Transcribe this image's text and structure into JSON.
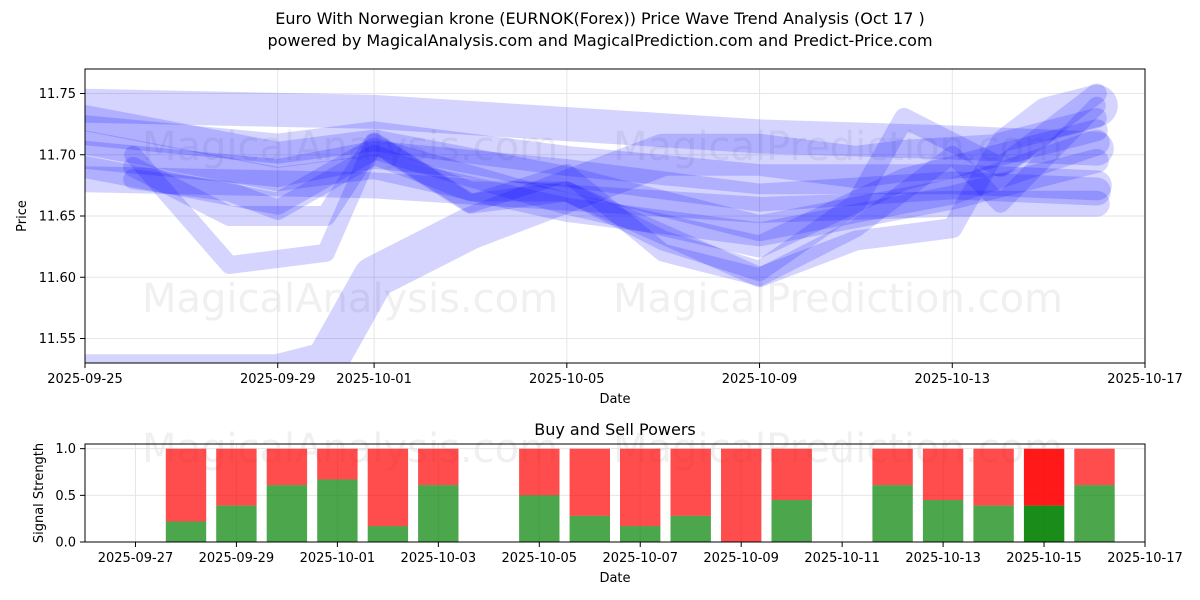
{
  "title": {
    "line1": "Euro With Norwegian krone (EURNOK(Forex)) Price Wave Trend Analysis (Oct 17 )",
    "line2": "powered by MagicalAnalysis.com and MagicalPrediction.com and Predict-Price.com"
  },
  "watermarks": [
    "MagicalAnalysis.com",
    "MagicalPrediction.com"
  ],
  "colors": {
    "wave": "#0000ff",
    "buy": "#008000",
    "sell": "#ff0000",
    "grid": "#e6e6e6"
  },
  "chart_data": [
    {
      "type": "line",
      "ylabel": "Price",
      "xlabel": "Date",
      "xlim": [
        "2025-09-25",
        "2025-10-17"
      ],
      "ylim": [
        11.53,
        11.77
      ],
      "x_ticks": [
        "2025-09-25",
        "2025-09-29",
        "2025-10-01",
        "2025-10-05",
        "2025-10-09",
        "2025-10-13",
        "2025-10-17"
      ],
      "y_ticks": [
        11.55,
        11.6,
        11.65,
        11.7,
        11.75
      ],
      "grid": true,
      "series": [
        {
          "x": [
            "2025-09-25",
            "2025-10-01",
            "2025-10-05",
            "2025-10-09",
            "2025-10-13",
            "2025-10-16"
          ],
          "y": [
            11.74,
            11.735,
            11.725,
            11.715,
            11.71,
            11.705
          ]
        },
        {
          "x": [
            "2025-09-25",
            "2025-09-29",
            "2025-10-01",
            "2025-10-05",
            "2025-10-09",
            "2025-10-13",
            "2025-10-16"
          ],
          "y": [
            11.72,
            11.705,
            11.715,
            11.695,
            11.68,
            11.68,
            11.675
          ]
        },
        {
          "x": [
            "2025-09-25",
            "2025-09-29",
            "2025-10-01",
            "2025-10-05",
            "2025-10-09",
            "2025-10-13",
            "2025-10-16"
          ],
          "y": [
            11.7,
            11.685,
            11.7,
            11.685,
            11.665,
            11.675,
            11.67
          ]
        },
        {
          "x": [
            "2025-09-25",
            "2025-10-01",
            "2025-10-05",
            "2025-10-09",
            "2025-10-13",
            "2025-10-16"
          ],
          "y": [
            11.68,
            11.675,
            11.665,
            11.655,
            11.66,
            11.66
          ]
        },
        {
          "x": [
            "2025-09-25",
            "2025-09-29",
            "2025-10-01",
            "2025-10-05",
            "2025-10-09",
            "2025-10-12",
            "2025-10-16"
          ],
          "y": [
            11.69,
            11.66,
            11.705,
            11.66,
            11.625,
            11.68,
            11.72
          ]
        },
        {
          "x": [
            "2025-09-25",
            "2025-09-29",
            "2025-10-01",
            "2025-10-05",
            "2025-10-09",
            "2025-10-13",
            "2025-10-16"
          ],
          "y": [
            11.71,
            11.68,
            11.69,
            11.655,
            11.635,
            11.665,
            11.695
          ]
        },
        {
          "x": [
            "2025-09-25",
            "2025-09-29",
            "2025-10-01",
            "2025-10-05",
            "2025-10-09",
            "2025-10-13",
            "2025-10-16"
          ],
          "y": [
            11.73,
            11.7,
            11.71,
            11.68,
            11.64,
            11.67,
            11.71
          ]
        },
        {
          "x": [
            "2025-09-26",
            "2025-09-28",
            "2025-09-30",
            "2025-10-01",
            "2025-10-03",
            "2025-10-05",
            "2025-10-07",
            "2025-10-09",
            "2025-10-11",
            "2025-10-12",
            "2025-10-14",
            "2025-10-16"
          ],
          "y": [
            11.69,
            11.65,
            11.65,
            11.71,
            11.66,
            11.67,
            11.63,
            11.605,
            11.66,
            11.73,
            11.69,
            11.75
          ]
        },
        {
          "x": [
            "2025-09-26",
            "2025-09-28",
            "2025-09-30",
            "2025-10-01",
            "2025-10-03",
            "2025-10-05",
            "2025-10-07",
            "2025-10-09",
            "2025-10-11",
            "2025-10-13",
            "2025-10-14",
            "2025-10-16"
          ],
          "y": [
            11.7,
            11.61,
            11.62,
            11.71,
            11.66,
            11.685,
            11.62,
            11.6,
            11.64,
            11.7,
            11.66,
            11.74
          ]
        },
        {
          "x": [
            "2025-09-26",
            "2025-09-28",
            "2025-09-29",
            "2025-10-01",
            "2025-10-03",
            "2025-10-05",
            "2025-10-07",
            "2025-10-09",
            "2025-10-11",
            "2025-10-13",
            "2025-10-14",
            "2025-10-16"
          ],
          "y": [
            11.68,
            11.67,
            11.655,
            11.7,
            11.67,
            11.67,
            11.635,
            11.6,
            11.63,
            11.64,
            11.71,
            11.73
          ]
        },
        {
          "x": [
            "2025-09-25",
            "2025-09-29",
            "2025-09-30",
            "2025-10-01",
            "2025-10-03",
            "2025-10-05",
            "2025-10-07",
            "2025-10-09",
            "2025-10-11",
            "2025-10-12",
            "2025-10-14",
            "2025-10-15",
            "2025-10-16"
          ],
          "y": [
            11.52,
            11.52,
            11.53,
            11.6,
            11.64,
            11.67,
            11.7,
            11.7,
            11.69,
            11.695,
            11.7,
            11.73,
            11.74
          ]
        }
      ]
    },
    {
      "type": "bar",
      "title": "Buy and Sell Powers",
      "ylabel": "Signal Strength",
      "xlabel": "Date",
      "xlim": [
        "2025-09-26",
        "2025-10-17"
      ],
      "ylim": [
        0,
        1.05
      ],
      "x_ticks": [
        "2025-09-27",
        "2025-09-29",
        "2025-10-01",
        "2025-10-03",
        "2025-10-05",
        "2025-10-07",
        "2025-10-09",
        "2025-10-11",
        "2025-10-13",
        "2025-10-15",
        "2025-10-17"
      ],
      "y_ticks": [
        0.0,
        0.5,
        1.0
      ],
      "grid": true,
      "categories": [
        "2025-09-28",
        "2025-09-29",
        "2025-09-30",
        "2025-10-01",
        "2025-10-02",
        "2025-10-03",
        "2025-10-05",
        "2025-10-06",
        "2025-10-07",
        "2025-10-08",
        "2025-10-09",
        "2025-10-10",
        "2025-10-12",
        "2025-10-13",
        "2025-10-14",
        "2025-10-15",
        "2025-10-16"
      ],
      "series": [
        {
          "name": "Buy",
          "values": [
            0.22,
            0.39,
            0.61,
            0.67,
            0.17,
            0.61,
            0.5,
            0.28,
            0.17,
            0.28,
            0.0,
            0.45,
            0.61,
            0.45,
            0.39,
            0.39,
            0.61
          ]
        },
        {
          "name": "Sell",
          "values": [
            0.78,
            0.61,
            0.39,
            0.33,
            0.83,
            0.39,
            0.5,
            0.72,
            0.83,
            0.72,
            1.0,
            0.55,
            0.39,
            0.55,
            0.61,
            0.61,
            0.39
          ]
        }
      ],
      "highlight_category": "2025-10-15"
    }
  ]
}
